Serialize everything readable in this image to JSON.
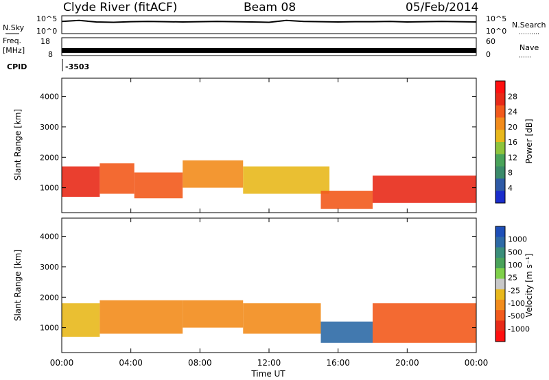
{
  "header": {
    "station": "Clyde River (fitACF)",
    "beam": "Beam 08",
    "date": "05/Feb/2014"
  },
  "colors": {
    "trace": "#000000",
    "frame": "#000000",
    "power_scale": [
      "#1a2dcc",
      "#2e5aa6",
      "#3a8a6a",
      "#49a35a",
      "#8ec43c",
      "#e8b81c",
      "#f28c1c",
      "#f25a1c",
      "#e82a18",
      "#ff1010"
    ],
    "velocity_scale": [
      "#1e4fb8",
      "#2e6aa6",
      "#3a8e7a",
      "#4aa35a",
      "#7fd04a",
      "#c8c8c8",
      "#e8b81c",
      "#f28c1c",
      "#f25a1c",
      "#e82a18",
      "#ff1010"
    ]
  },
  "chart_data": [
    {
      "type": "line",
      "panel": "noise",
      "left_label": "N.Sky",
      "right_label": "N.Search",
      "left_ticks": [
        "10^5",
        "10^0"
      ],
      "right_ticks": [
        "10^5",
        "10^0"
      ],
      "series": [
        {
          "name": "N.Sky",
          "x": [
            0,
            1,
            2,
            3,
            4,
            5,
            6,
            7,
            8,
            9,
            10,
            11,
            12,
            13,
            14,
            15,
            16,
            17,
            18,
            19,
            20,
            21,
            22,
            23,
            24
          ],
          "y": [
            3.6,
            3.9,
            3.4,
            3.3,
            3.5,
            3.6,
            3.5,
            3.4,
            3.5,
            3.6,
            3.5,
            3.4,
            3.3,
            3.9,
            3.6,
            3.5,
            3.4,
            3.5,
            3.5,
            3.6,
            3.4,
            3.5,
            3.6,
            3.5,
            3.4
          ]
        }
      ],
      "ylim": [
        0,
        5
      ]
    },
    {
      "type": "line",
      "panel": "frequency",
      "left_label_lines": [
        "Freq.",
        "[MHz]"
      ],
      "right_label": "Nave",
      "left_ticks": [
        "18",
        "8"
      ],
      "right_ticks": [
        "60",
        "0"
      ],
      "series": [
        {
          "name": "Freq.",
          "x": [
            0,
            24
          ],
          "y": [
            10.5,
            10.5
          ]
        }
      ],
      "ylim": [
        8,
        18
      ]
    },
    {
      "type": "table",
      "panel": "cpid",
      "label": "CPID",
      "value": "-3503"
    },
    {
      "type": "heatmap",
      "panel": "power",
      "ylabel": "Slant Range [km]",
      "yticks": [
        "1000",
        "2000",
        "3000",
        "4000"
      ],
      "ylim": [
        180,
        4600
      ],
      "xlim": [
        0,
        24
      ],
      "colorbar_label": "Power [dB]",
      "colorbar_ticks": [
        "4",
        "8",
        "12",
        "16",
        "20",
        "24",
        "28"
      ],
      "colorbar_range": [
        0,
        30
      ],
      "bands": [
        {
          "x": [
            0,
            2.2
          ],
          "range": [
            700,
            1700
          ],
          "level": 26
        },
        {
          "x": [
            2.2,
            4.2
          ],
          "range": [
            800,
            1800
          ],
          "level": 22
        },
        {
          "x": [
            4.2,
            7
          ],
          "range": [
            650,
            1500
          ],
          "level": 24
        },
        {
          "x": [
            7,
            10.5
          ],
          "range": [
            1000,
            1900
          ],
          "level": 20
        },
        {
          "x": [
            10.5,
            15.5
          ],
          "range": [
            800,
            1700
          ],
          "level": 18
        },
        {
          "x": [
            15,
            18
          ],
          "range": [
            300,
            900
          ],
          "level": 24
        },
        {
          "x": [
            18,
            24
          ],
          "range": [
            500,
            1400
          ],
          "level": 26
        }
      ]
    },
    {
      "type": "heatmap",
      "panel": "velocity",
      "ylabel": "Slant Range [km]",
      "yticks": [
        "1000",
        "2000",
        "3000",
        "4000"
      ],
      "ylim": [
        180,
        4600
      ],
      "xlim": [
        0,
        24
      ],
      "xlabel": "Time UT",
      "xticks": [
        "00:00",
        "04:00",
        "08:00",
        "12:00",
        "16:00",
        "20:00",
        "00:00"
      ],
      "colorbar_label": "Velocity [m s⁻¹]",
      "colorbar_ticks": [
        "1000",
        "500",
        "100",
        "25",
        "-25",
        "-100",
        "-500",
        "-1000"
      ],
      "bands": [
        {
          "x": [
            0,
            2.2
          ],
          "range": [
            700,
            1800
          ],
          "level": -100
        },
        {
          "x": [
            2.2,
            7
          ],
          "range": [
            800,
            1900
          ],
          "level": -300
        },
        {
          "x": [
            7,
            10.5
          ],
          "range": [
            1000,
            1900
          ],
          "level": -200
        },
        {
          "x": [
            10.5,
            15
          ],
          "range": [
            800,
            1800
          ],
          "level": -300
        },
        {
          "x": [
            15,
            18
          ],
          "range": [
            500,
            1200
          ],
          "level": 500
        },
        {
          "x": [
            18,
            24
          ],
          "range": [
            500,
            1800
          ],
          "level": -500
        }
      ]
    }
  ]
}
